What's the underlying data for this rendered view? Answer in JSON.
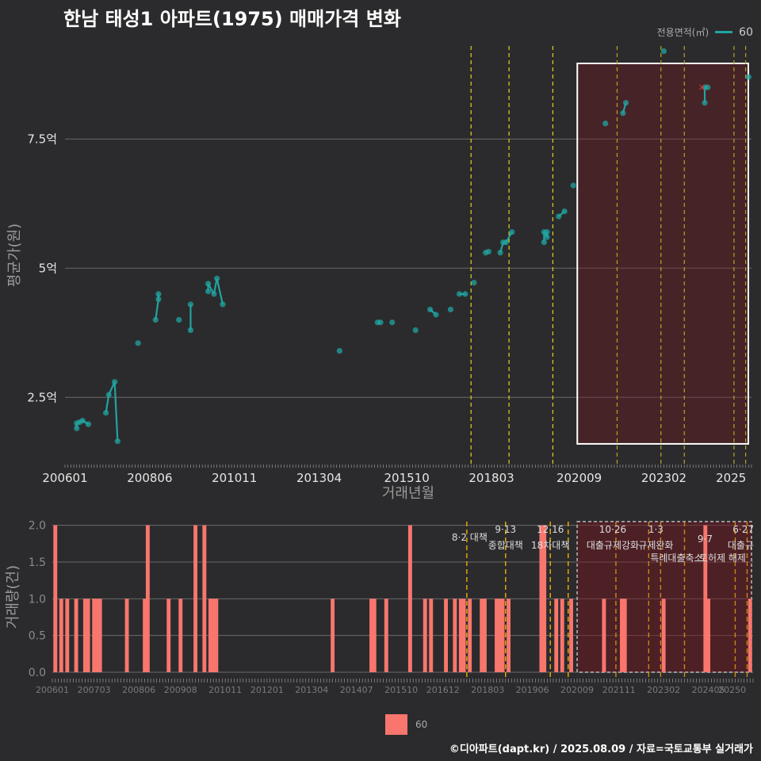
{
  "title": "한남 태성1 아파트(1975) 매매가격 변화",
  "legend_top": {
    "title": "전용면적(㎡)",
    "entry": "60"
  },
  "legend_bottom": {
    "entry": "60"
  },
  "caption": "©디아파트(dapt.kr) / 2025.08.09 / 자료=국토교통부 실거래가",
  "chart_data": [
    {
      "type": "line",
      "xlabel": "거래년월",
      "ylabel": "평균가(원)",
      "x_ticks": [
        "200601",
        "200806",
        "201011",
        "201304",
        "201510",
        "201803",
        "202009",
        "202302",
        "2025"
      ],
      "y_ticks": [
        {
          "value": 2.5,
          "label": "2.5억"
        },
        {
          "value": 5,
          "label": "5억"
        },
        {
          "value": 7.5,
          "label": "7.5억"
        }
      ],
      "ylim": [
        1.2,
        9.3
      ],
      "xlim": [
        "2006-01",
        "2025-08"
      ],
      "highlight_range": {
        "from": "2020-10",
        "to": "2025-08"
      },
      "policy_dates": [
        "2017-08",
        "2018-09",
        "2019-12",
        "2021-10",
        "2023-01",
        "2023-09",
        "2025-02",
        "2025-06"
      ],
      "series": [
        {
          "name": "60",
          "color": "#20a4a0",
          "points": [
            {
              "x": "2006-05",
              "y": 1.9
            },
            {
              "x": "2006-05",
              "y": 2.0
            },
            {
              "x": "2006-06",
              "y": 2.02
            },
            {
              "x": "2006-07",
              "y": 2.05
            },
            {
              "x": "2006-09",
              "y": 1.98
            },
            {
              "x": "2007-03",
              "y": 2.2
            },
            {
              "x": "2007-04",
              "y": 2.55
            },
            {
              "x": "2007-06",
              "y": 2.8
            },
            {
              "x": "2007-07",
              "y": 1.65
            },
            {
              "x": "2008-02",
              "y": 3.55
            },
            {
              "x": "2008-08",
              "y": 4.0
            },
            {
              "x": "2008-09",
              "y": 4.4
            },
            {
              "x": "2008-09",
              "y": 4.5
            },
            {
              "x": "2009-04",
              "y": 4.0
            },
            {
              "x": "2009-08",
              "y": 3.8
            },
            {
              "x": "2009-08",
              "y": 4.3
            },
            {
              "x": "2010-02",
              "y": 4.55
            },
            {
              "x": "2010-02",
              "y": 4.7
            },
            {
              "x": "2010-04",
              "y": 4.5
            },
            {
              "x": "2010-05",
              "y": 4.8
            },
            {
              "x": "2010-07",
              "y": 4.3
            },
            {
              "x": "2013-11",
              "y": 3.4
            },
            {
              "x": "2014-12",
              "y": 3.95
            },
            {
              "x": "2015-01",
              "y": 3.95
            },
            {
              "x": "2015-05",
              "y": 3.95
            },
            {
              "x": "2016-01",
              "y": 3.8
            },
            {
              "x": "2016-06",
              "y": 4.2
            },
            {
              "x": "2016-08",
              "y": 4.1
            },
            {
              "x": "2017-01",
              "y": 4.2
            },
            {
              "x": "2017-04",
              "y": 4.5
            },
            {
              "x": "2017-06",
              "y": 4.5
            },
            {
              "x": "2017-09",
              "y": 4.72
            },
            {
              "x": "2018-01",
              "y": 5.3
            },
            {
              "x": "2018-02",
              "y": 5.32
            },
            {
              "x": "2018-06",
              "y": 5.3
            },
            {
              "x": "2018-07",
              "y": 5.5
            },
            {
              "x": "2018-08",
              "y": 5.5
            },
            {
              "x": "2018-10",
              "y": 5.7
            },
            {
              "x": "2019-09",
              "y": 5.5
            },
            {
              "x": "2019-09",
              "y": 5.7
            },
            {
              "x": "2019-10",
              "y": 5.6
            },
            {
              "x": "2019-10",
              "y": 5.7
            },
            {
              "x": "2020-02",
              "y": 6.0
            },
            {
              "x": "2020-04",
              "y": 6.1
            },
            {
              "x": "2020-07",
              "y": 6.6
            },
            {
              "x": "2021-06",
              "y": 7.8
            },
            {
              "x": "2021-12",
              "y": 8.0
            },
            {
              "x": "2022-01",
              "y": 8.2
            },
            {
              "x": "2023-02",
              "y": 9.2
            },
            {
              "x": "2024-04",
              "y": 8.2
            },
            {
              "x": "2024-04",
              "y": 8.5
            },
            {
              "x": "2024-05",
              "y": 8.5
            },
            {
              "x": "2025-07",
              "y": 8.7
            }
          ],
          "cancelled": [
            {
              "x": "2024-03",
              "y": 8.5
            }
          ]
        }
      ]
    },
    {
      "type": "bar",
      "ylabel": "거래량(건)",
      "x_ticks": [
        "200601",
        "200703",
        "200806",
        "200908",
        "201011",
        "201201",
        "201304",
        "201407",
        "201510",
        "201612",
        "201803",
        "201906",
        "202009",
        "202111",
        "202302",
        "202405",
        "20250"
      ],
      "y_ticks": [
        {
          "value": 0,
          "label": "0.0"
        },
        {
          "value": 0.5,
          "label": "0.5"
        },
        {
          "value": 1,
          "label": "1.0"
        },
        {
          "value": 1.5,
          "label": "1.5"
        },
        {
          "value": 2,
          "label": "2.0"
        }
      ],
      "ylim": [
        0,
        2.05
      ],
      "xlim": [
        "2006-01",
        "2025-08"
      ],
      "highlight_range": {
        "from": "2020-09",
        "to": "2025-08"
      },
      "policies": [
        {
          "date": "2017-08",
          "date_label": "8·2 대책",
          "name": ""
        },
        {
          "date": "2018-09",
          "date_label": "9·13",
          "name": "종합대책"
        },
        {
          "date": "2019-12",
          "date_label": "12·16",
          "name": "18차대책"
        },
        {
          "date": "2020-06",
          "date_label": "",
          "name": ""
        },
        {
          "date": "2021-10",
          "date_label": "10·26",
          "name": "대출규제강화"
        },
        {
          "date": "2022-09",
          "date_label": "",
          "name": ""
        },
        {
          "date": "2023-01",
          "date_label": "1·3",
          "name": "규제완화"
        },
        {
          "date": "2023-09",
          "date_label": "9·7",
          "name": "특례대출축소"
        },
        {
          "date": "2025-02",
          "date_label": "",
          "name": "토허제 해제"
        },
        {
          "date": "2025-06",
          "date_label": "6·27",
          "name": "대출규"
        }
      ],
      "series": [
        {
          "name": "60",
          "color": "#f8766d",
          "bars": [
            {
              "x": "2006-02",
              "value": 2
            },
            {
              "x": "2006-04",
              "value": 1
            },
            {
              "x": "2006-06",
              "value": 1
            },
            {
              "x": "2006-09",
              "value": 1
            },
            {
              "x": "2006-12",
              "value": 1
            },
            {
              "x": "2007-01",
              "value": 1
            },
            {
              "x": "2007-03",
              "value": 1
            },
            {
              "x": "2007-04",
              "value": 1
            },
            {
              "x": "2007-05",
              "value": 1
            },
            {
              "x": "2008-02",
              "value": 1
            },
            {
              "x": "2008-08",
              "value": 1
            },
            {
              "x": "2008-09",
              "value": 2
            },
            {
              "x": "2009-04",
              "value": 1
            },
            {
              "x": "2009-08",
              "value": 1
            },
            {
              "x": "2010-01",
              "value": 2
            },
            {
              "x": "2010-04",
              "value": 2
            },
            {
              "x": "2010-06",
              "value": 1
            },
            {
              "x": "2010-07",
              "value": 1
            },
            {
              "x": "2010-08",
              "value": 1
            },
            {
              "x": "2013-11",
              "value": 1
            },
            {
              "x": "2014-12",
              "value": 1
            },
            {
              "x": "2015-01",
              "value": 1
            },
            {
              "x": "2015-05",
              "value": 1
            },
            {
              "x": "2016-01",
              "value": 2
            },
            {
              "x": "2016-06",
              "value": 1
            },
            {
              "x": "2016-08",
              "value": 1
            },
            {
              "x": "2017-01",
              "value": 1
            },
            {
              "x": "2017-04",
              "value": 1
            },
            {
              "x": "2017-06",
              "value": 1
            },
            {
              "x": "2017-07",
              "value": 1
            },
            {
              "x": "2017-09",
              "value": 1
            },
            {
              "x": "2018-01",
              "value": 1
            },
            {
              "x": "2018-02",
              "value": 1
            },
            {
              "x": "2018-06",
              "value": 1
            },
            {
              "x": "2018-07",
              "value": 1
            },
            {
              "x": "2018-08",
              "value": 1
            },
            {
              "x": "2018-10",
              "value": 1
            },
            {
              "x": "2019-09",
              "value": 2
            },
            {
              "x": "2019-10",
              "value": 2
            },
            {
              "x": "2020-02",
              "value": 1
            },
            {
              "x": "2020-04",
              "value": 1
            },
            {
              "x": "2020-07",
              "value": 1
            },
            {
              "x": "2021-06",
              "value": 1
            },
            {
              "x": "2021-12",
              "value": 1
            },
            {
              "x": "2022-01",
              "value": 1
            },
            {
              "x": "2023-02",
              "value": 1
            },
            {
              "x": "2024-04",
              "value": 2
            },
            {
              "x": "2024-05",
              "value": 1
            },
            {
              "x": "2025-07",
              "value": 1
            }
          ]
        }
      ]
    }
  ]
}
